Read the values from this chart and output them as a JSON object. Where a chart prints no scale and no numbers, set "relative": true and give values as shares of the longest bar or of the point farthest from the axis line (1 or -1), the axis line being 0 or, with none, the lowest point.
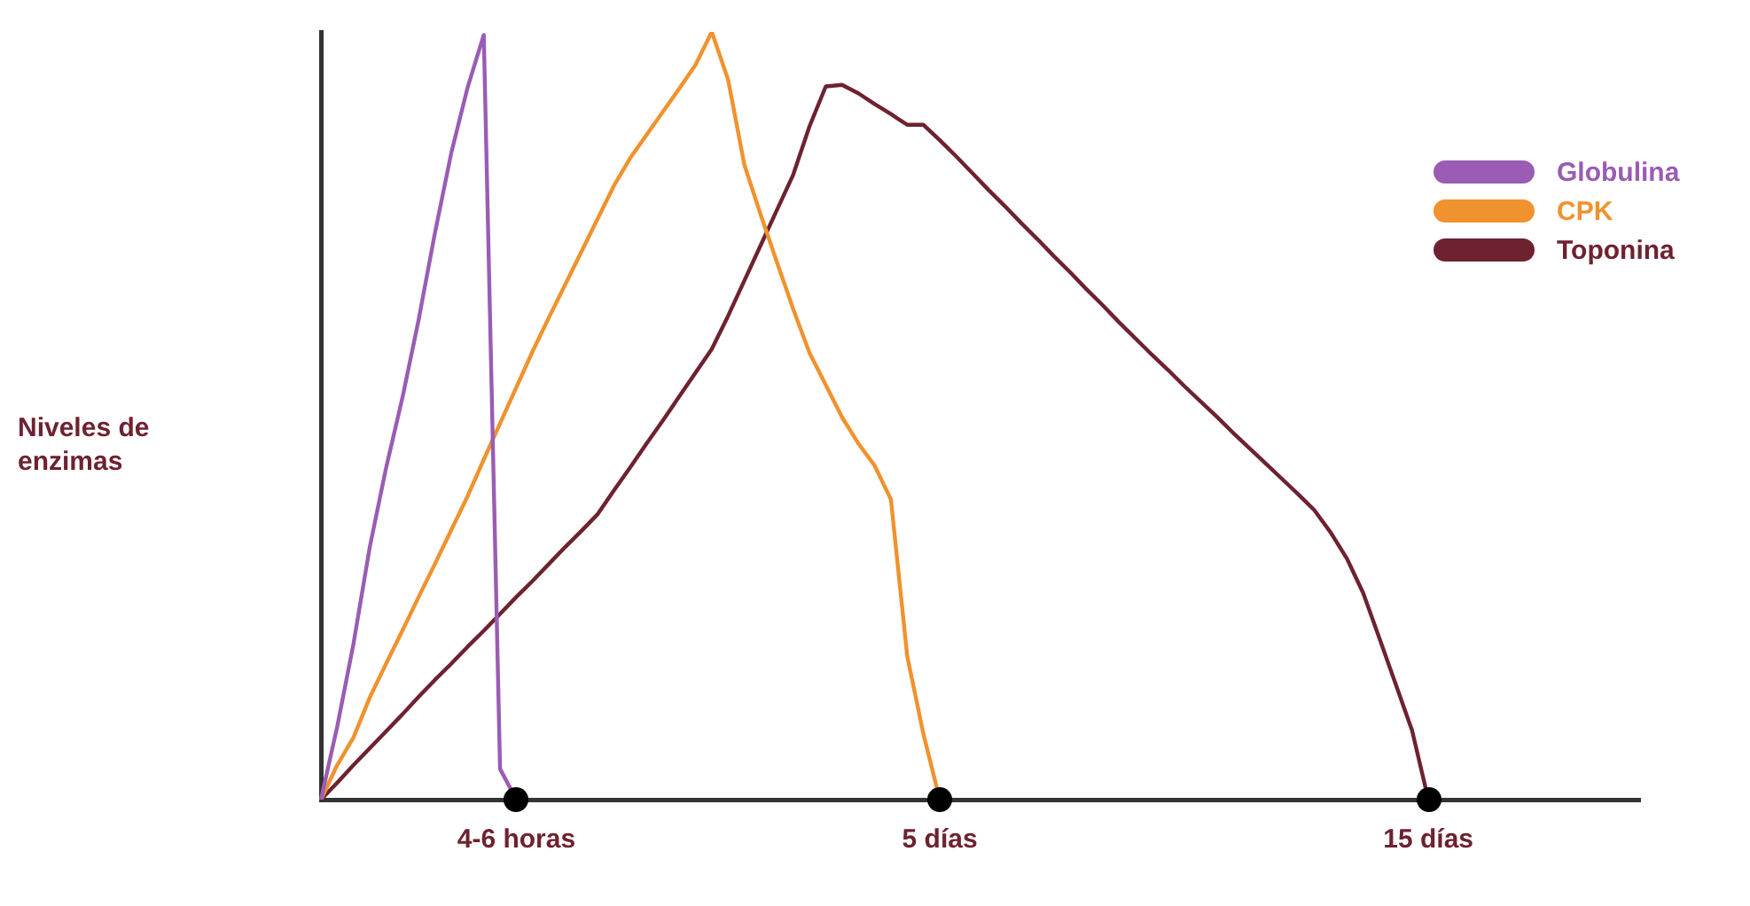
{
  "chart_data": {
    "type": "line",
    "relative": true,
    "annotations": [
      "Niveles de enzimas"
    ],
    "legend": "top right",
    "tick_labels": "x",
    "grid": false,
    "marker": "none",
    "categories": [
      null,
      null,
      null,
      null,
      null,
      null,
      null,
      null,
      null,
      null,
      null,
      null,
      "4-6 horas",
      null,
      null,
      null,
      null,
      null,
      null,
      null,
      null,
      null,
      null,
      null,
      null,
      null,
      null,
      null,
      null,
      null,
      null,
      null,
      null,
      null,
      null,
      null,
      null,
      null,
      "5 días",
      null,
      null,
      null,
      null,
      null,
      null,
      null,
      null,
      null,
      null,
      null,
      null,
      null,
      null,
      null,
      null,
      null,
      null,
      null,
      null,
      null,
      null,
      null,
      null,
      null,
      null,
      null,
      null,
      null,
      "15 días",
      null,
      null,
      null,
      null,
      null,
      null,
      null,
      null,
      null,
      null,
      null,
      null,
      null
    ],
    "series": [
      {
        "name": "Globulina",
        "color": "#9a5cb4",
        "values": [
          0,
          0.095,
          0.203,
          0.329,
          0.432,
          0.523,
          0.625,
          0.738,
          0.842,
          0.927,
          0.996,
          0.04,
          0,
          null,
          null,
          null,
          null,
          null,
          null,
          null,
          null,
          null,
          null,
          null,
          null,
          null,
          null,
          null,
          null,
          null,
          null,
          null,
          null,
          null,
          null,
          null,
          null,
          null,
          null,
          null,
          null,
          null,
          null,
          null,
          null,
          null,
          null,
          null,
          null,
          null,
          null,
          null,
          null,
          null,
          null,
          null,
          null,
          null,
          null,
          null,
          null,
          null,
          null,
          null,
          null,
          null,
          null,
          null,
          null,
          null,
          null,
          null,
          null,
          null,
          null,
          null,
          null,
          null,
          null,
          null,
          null,
          null
        ]
      },
      {
        "name": "CPK",
        "color": "#f0922e",
        "values": [
          0,
          0.045,
          0.081,
          0.133,
          0.177,
          0.22,
          0.264,
          0.307,
          0.351,
          0.395,
          0.443,
          0.49,
          0.537,
          0.584,
          0.628,
          0.671,
          0.714,
          0.757,
          0.8,
          0.836,
          0.866,
          0.896,
          0.926,
          0.957,
          1,
          0.938,
          0.827,
          0.762,
          0.7,
          0.639,
          0.582,
          0.54,
          0.498,
          0.464,
          0.435,
          0.391,
          0.187,
          0.085,
          0,
          null,
          null,
          null,
          null,
          null,
          null,
          null,
          null,
          null,
          null,
          null,
          null,
          null,
          null,
          null,
          null,
          null,
          null,
          null,
          null,
          null,
          null,
          null,
          null,
          null,
          null,
          null,
          null,
          null,
          null,
          null,
          null,
          null,
          null,
          null,
          null,
          null,
          null,
          null,
          null,
          null,
          null,
          null
        ]
      },
      {
        "name": "Toponina",
        "color": "#6e2230",
        "values": [
          0,
          0.022,
          0.045,
          0.067,
          0.089,
          0.111,
          0.134,
          0.156,
          0.177,
          0.199,
          0.22,
          0.242,
          0.264,
          0.285,
          0.307,
          0.329,
          0.35,
          0.372,
          0.403,
          0.433,
          0.464,
          0.494,
          0.525,
          0.556,
          0.587,
          0.63,
          0.676,
          0.722,
          0.768,
          0.814,
          0.877,
          0.929,
          0.931,
          0.92,
          0.906,
          0.893,
          0.879,
          0.879,
          0.859,
          0.838,
          0.816,
          0.794,
          0.773,
          0.751,
          0.73,
          0.708,
          0.687,
          0.665,
          0.644,
          0.622,
          0.601,
          0.58,
          0.56,
          0.539,
          0.519,
          0.499,
          0.478,
          0.458,
          0.438,
          0.418,
          0.398,
          0.377,
          0.348,
          0.314,
          0.269,
          0.21,
          0.15,
          0.09,
          0,
          null,
          null,
          null,
          null,
          null,
          null,
          null,
          null,
          null,
          null,
          null,
          null,
          null
        ]
      }
    ]
  }
}
